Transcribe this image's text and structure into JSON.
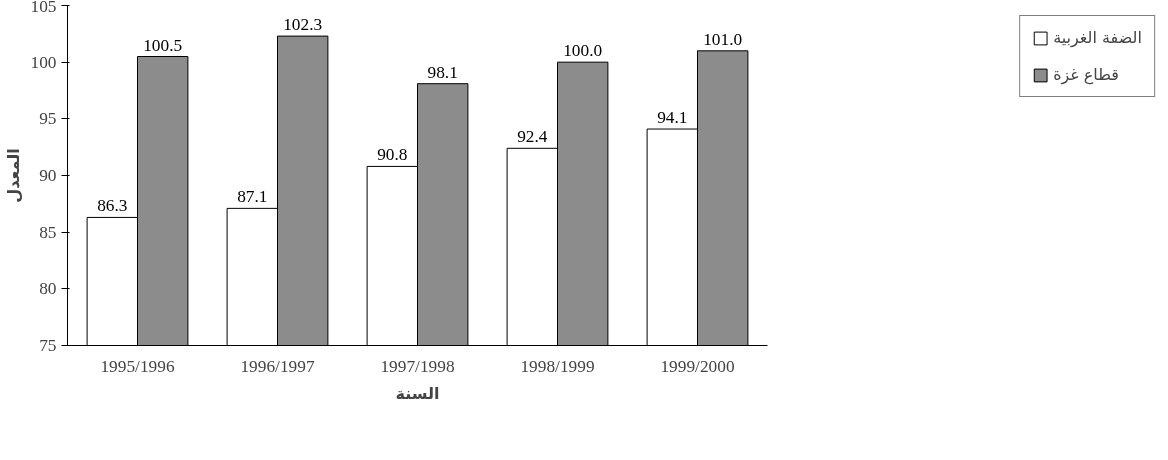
{
  "chart_data": {
    "type": "bar",
    "xlabel": "السنة",
    "ylabel": "المعدل",
    "categories": [
      "1995/1996",
      "1996/1997",
      "1997/1998",
      "1998/1999",
      "1999/2000"
    ],
    "series": [
      {
        "name": "الضفة الغربية",
        "color": "#ffffff",
        "values": [
          86.3,
          87.1,
          90.8,
          92.4,
          94.1
        ],
        "value_labels": [
          "86.3",
          "87.1",
          "90.8",
          "92.4",
          "94.1"
        ]
      },
      {
        "name": "قطاع غزة",
        "color": "#8c8c8c",
        "values": [
          100.5,
          102.3,
          98.1,
          100.0,
          101.0
        ],
        "value_labels": [
          "100.5",
          "102.3",
          "98.1",
          "100.0",
          "101.0"
        ]
      }
    ],
    "ylim": [
      75,
      105
    ],
    "yticks": [
      75,
      80,
      85,
      90,
      95,
      100,
      105
    ],
    "grid": false,
    "legend": "top right"
  }
}
